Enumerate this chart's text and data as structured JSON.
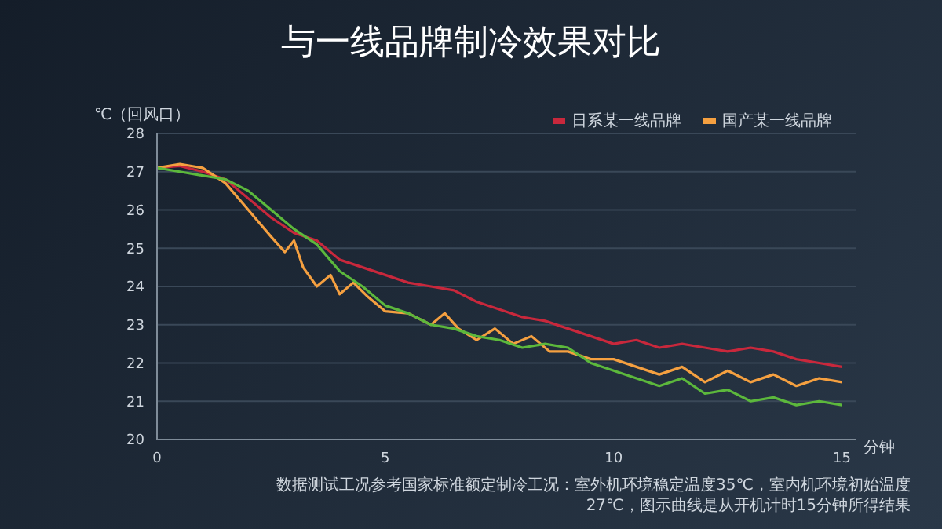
{
  "chart_data": {
    "type": "line",
    "title": "与一线品牌制冷效果对比",
    "ylabel": "℃（回风口）",
    "xlabel": "分钟",
    "xlim": [
      0,
      15.3
    ],
    "xticks": [
      0,
      5,
      10,
      15
    ],
    "ylim": [
      20,
      28
    ],
    "yticks": [
      20,
      21,
      22,
      23,
      24,
      25,
      26,
      27,
      28
    ],
    "grid": "y",
    "legend": "top right",
    "marker": "none",
    "line_style": "solid",
    "series": [
      {
        "name": "日系某一线品牌",
        "color": "#c8283c",
        "x": [
          0,
          0.5,
          1,
          1.5,
          2,
          2.5,
          3,
          3.5,
          4,
          4.5,
          5,
          5.5,
          6,
          6.5,
          7,
          7.5,
          8,
          8.5,
          9,
          9.5,
          10,
          10.5,
          11,
          11.5,
          12,
          12.5,
          13,
          13.5,
          14,
          14.5,
          15
        ],
        "values": [
          27.1,
          27.15,
          27.0,
          26.8,
          26.3,
          25.8,
          25.4,
          25.2,
          24.7,
          24.5,
          24.3,
          24.1,
          24.0,
          23.9,
          23.6,
          23.4,
          23.2,
          23.1,
          22.9,
          22.7,
          22.5,
          22.6,
          22.4,
          22.5,
          22.4,
          22.3,
          22.4,
          22.3,
          22.1,
          22.0,
          21.9
        ]
      },
      {
        "name": "国产某一线品牌",
        "color": "#f5a040",
        "x": [
          0,
          0.5,
          1,
          1.5,
          2,
          2.5,
          2.8,
          3,
          3.2,
          3.5,
          3.8,
          4,
          4.3,
          4.6,
          5,
          5.5,
          6,
          6.3,
          6.6,
          7,
          7.4,
          7.8,
          8.2,
          8.6,
          9,
          9.5,
          10,
          10.5,
          11,
          11.5,
          12,
          12.5,
          13,
          13.5,
          14,
          14.5,
          15
        ],
        "values": [
          27.1,
          27.2,
          27.1,
          26.7,
          26.0,
          25.3,
          24.9,
          25.2,
          24.5,
          24.0,
          24.3,
          23.8,
          24.1,
          23.75,
          23.35,
          23.3,
          23.0,
          23.3,
          22.9,
          22.6,
          22.9,
          22.5,
          22.7,
          22.3,
          22.3,
          22.1,
          22.1,
          21.9,
          21.7,
          21.9,
          21.5,
          21.8,
          21.5,
          21.7,
          21.4,
          21.6,
          21.5
        ]
      },
      {
        "color": "#5cb83c",
        "x": [
          0,
          0.5,
          1,
          1.5,
          2,
          2.5,
          3,
          3.5,
          4,
          4.5,
          5,
          5.5,
          6,
          6.5,
          7,
          7.5,
          8,
          8.5,
          9,
          9.5,
          10,
          10.5,
          11,
          11.5,
          12,
          12.5,
          13,
          13.5,
          14,
          14.5,
          15
        ],
        "values": [
          27.1,
          27.0,
          26.9,
          26.8,
          26.5,
          26.0,
          25.5,
          25.1,
          24.4,
          24.0,
          23.5,
          23.3,
          23.0,
          22.9,
          22.7,
          22.6,
          22.4,
          22.5,
          22.4,
          22.0,
          21.8,
          21.6,
          21.4,
          21.6,
          21.2,
          21.3,
          21.0,
          21.1,
          20.9,
          21.0,
          20.9
        ]
      }
    ],
    "annotations": [
      "数据测试工况参考国家标准额定制冷工况：室外机环境稳定温度35℃，室内机环境初始温度27℃，图示曲线是从开机计时15分钟所得结果"
    ]
  }
}
